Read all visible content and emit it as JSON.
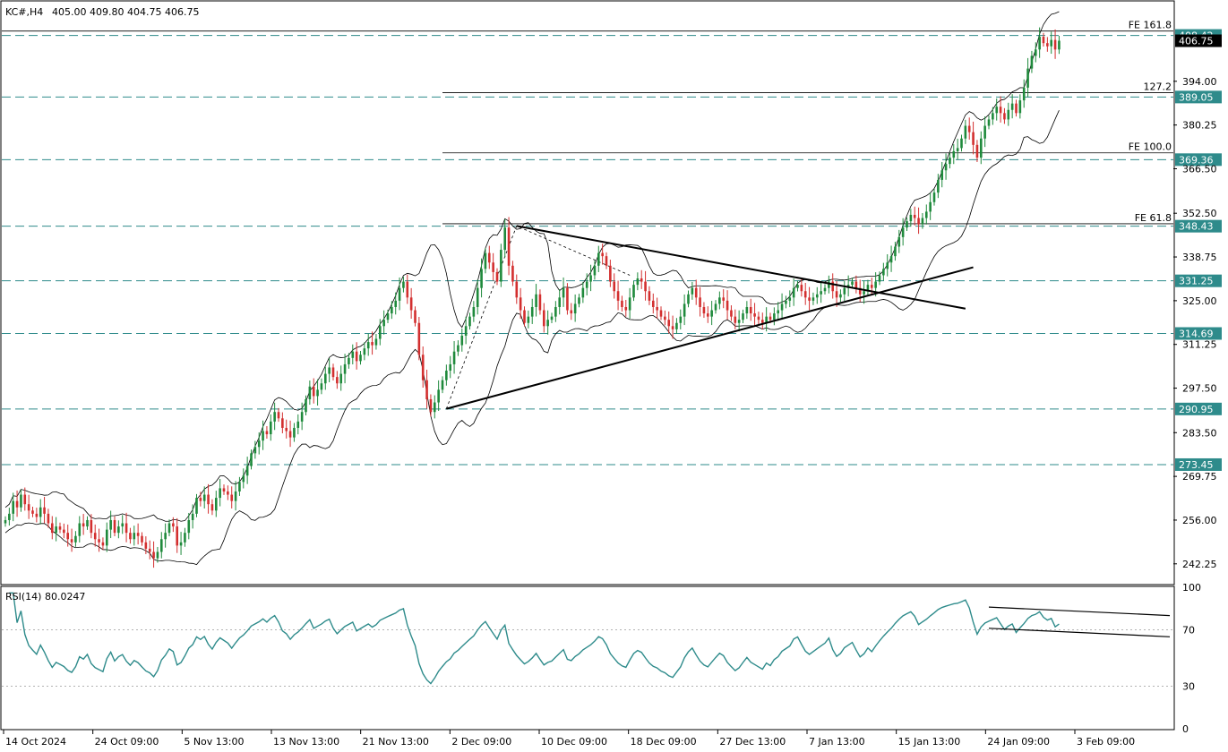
{
  "header": {
    "symbol": "KC#,H4",
    "ohlc": "405.00 409.80 404.75 406.75"
  },
  "colors": {
    "up": "#1f8a3c",
    "down": "#d32f2f",
    "level_line": "#2e8b8b",
    "rsi_line": "#2e8b8b",
    "bands": "#000000",
    "trendlines": "#000000"
  },
  "chart_data": [
    {
      "type": "candlestick",
      "title": "KC#,H4",
      "ylim": [
        236.0,
        419.0
      ],
      "y_ticks": [
        "242.25",
        "256.00",
        "269.75",
        "283.50",
        "297.50",
        "311.25",
        "325.00",
        "338.75",
        "352.50",
        "366.50",
        "380.25",
        "394.00"
      ],
      "x_ticks": [
        "14 Oct 2024",
        "24 Oct 09:00",
        "5 Nov 13:00",
        "13 Nov 13:00",
        "21 Nov 13:00",
        "2 Dec 09:00",
        "10 Dec 09:00",
        "18 Dec 09:00",
        "27 Dec 13:00",
        "7 Jan 13:00",
        "15 Jan 13:00",
        "24 Jan 09:00",
        "3 Feb 09:00"
      ],
      "x_range": [
        0,
        280
      ],
      "current_price": "406.75",
      "levels": [
        {
          "value": 408.42,
          "label": "408.42"
        },
        {
          "value": 389.05,
          "label": "389.05"
        },
        {
          "value": 369.36,
          "label": "369.36"
        },
        {
          "value": 348.43,
          "label": "348.43"
        },
        {
          "value": 331.25,
          "label": "331.25"
        },
        {
          "value": 314.69,
          "label": "314.69"
        },
        {
          "value": 290.95,
          "label": "290.95"
        },
        {
          "value": 273.45,
          "label": "273.45"
        }
      ],
      "fib_levels": [
        {
          "value": 409.8,
          "label": "FE 161.8"
        },
        {
          "value": 390.4,
          "label": "127.2"
        },
        {
          "value": 371.5,
          "label": "FE 100.0"
        },
        {
          "value": 349.2,
          "label": "FE 61.8"
        }
      ],
      "fib_start_index": 112,
      "trendlines": [
        {
          "from": [
            113,
            291.0
          ],
          "to": [
            248,
            335.5
          ]
        },
        {
          "from": [
            131,
            348.5
          ],
          "to": [
            246,
            322.5
          ]
        }
      ],
      "fib_dashed_path": [
        [
          113,
          291.0
        ],
        [
          131,
          348.5
        ],
        [
          160,
          333.0
        ]
      ],
      "bollinger_width": 13,
      "closes": [
        256,
        258,
        262,
        260,
        264,
        261,
        259,
        258,
        257,
        260,
        258,
        255,
        252,
        254,
        253,
        252,
        250,
        249,
        251,
        255,
        254,
        256,
        252,
        250,
        249,
        248,
        253,
        256,
        252,
        254,
        255,
        252,
        250,
        252,
        251,
        249,
        247,
        246,
        244,
        246,
        250,
        252,
        255,
        254,
        248,
        249,
        252,
        256,
        258,
        263,
        262,
        264,
        261,
        259,
        263,
        266,
        265,
        264,
        262,
        265,
        268,
        270,
        273,
        277,
        279,
        281,
        284,
        283,
        287,
        290,
        288,
        285,
        284,
        282,
        285,
        287,
        290,
        294,
        298,
        295,
        297,
        299,
        302,
        304,
        301,
        299,
        302,
        305,
        307,
        309,
        306,
        308,
        310,
        312,
        311,
        313,
        317,
        319,
        321,
        323,
        325,
        329,
        331,
        326,
        322,
        318,
        308,
        300,
        294,
        290,
        293,
        297,
        300,
        303,
        305,
        309,
        311,
        314,
        317,
        320,
        323,
        329,
        335,
        340,
        337,
        334,
        331,
        341,
        348,
        336,
        331,
        326,
        322,
        318,
        320,
        323,
        327,
        322,
        317,
        319,
        320,
        323,
        326,
        329,
        322,
        321,
        324,
        326,
        329,
        331,
        333,
        336,
        340,
        339,
        336,
        331,
        328,
        325,
        323,
        322,
        326,
        330,
        332,
        331,
        328,
        325,
        323,
        322,
        320,
        319,
        317,
        316,
        318,
        320,
        324,
        327,
        329,
        326,
        323,
        321,
        320,
        322,
        324,
        326,
        325,
        322,
        320,
        318,
        319,
        321,
        323,
        321,
        320,
        319,
        318,
        320,
        319,
        321,
        322,
        324,
        325,
        326,
        329,
        330,
        328,
        326,
        325,
        326,
        327,
        328,
        329,
        331,
        328,
        326,
        327,
        329,
        330,
        331,
        329,
        327,
        328,
        330,
        329,
        331,
        333,
        335,
        337,
        339,
        342,
        345,
        348,
        350,
        352,
        351,
        349,
        351,
        353,
        356,
        359,
        363,
        366,
        368,
        370,
        372,
        373,
        376,
        380,
        378,
        374,
        370,
        376,
        380,
        382,
        384,
        386,
        384,
        382,
        385,
        387,
        384,
        388,
        392,
        398,
        402,
        404,
        408,
        406,
        405,
        407,
        404,
        406.75
      ]
    },
    {
      "type": "line",
      "title": "RSI(14) 80.0247",
      "ylim": [
        0,
        100
      ],
      "y_ticks": [
        "100",
        "70",
        "30",
        "0"
      ],
      "reference_levels": [
        70,
        30
      ],
      "divergence_lines": [
        {
          "from": [
            252,
            86
          ],
          "to": [
            280,
            80
          ]
        },
        {
          "from": [
            252,
            71
          ],
          "to": [
            280,
            65
          ]
        }
      ]
    }
  ]
}
